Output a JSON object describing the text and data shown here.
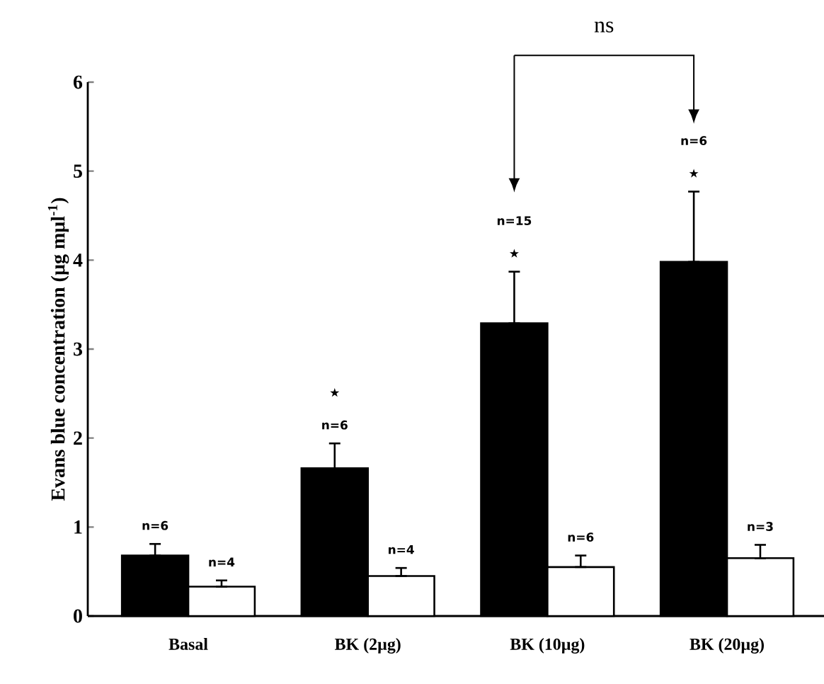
{
  "chart_data": {
    "type": "bar",
    "ylabel": "Evans blue concentration (µg mµl$^{-1}$)",
    "categories": [
      "Basal",
      "BK (2µg)",
      "BK (10µg)",
      "BK (20µg)"
    ],
    "series": [
      {
        "color": "#000000",
        "values": [
          0.68,
          1.66,
          3.29,
          3.98
        ],
        "errors": [
          [
            0.68,
            0.81
          ],
          [
            1.66,
            1.94
          ],
          [
            3.29,
            3.87
          ],
          [
            3.98,
            4.77
          ]
        ]
      },
      {
        "color": "#ffffff",
        "values": [
          0.33,
          0.45,
          0.55,
          0.65
        ],
        "errors": [
          [
            0.33,
            0.4
          ],
          [
            0.45,
            0.54
          ],
          [
            0.55,
            0.68
          ],
          [
            0.65,
            0.8
          ]
        ]
      }
    ],
    "ylim": [
      0,
      6
    ],
    "yticks": [
      0,
      1,
      2,
      3,
      4,
      5,
      6
    ],
    "annotations": [
      "n=6",
      "n=4",
      "★",
      "n=6",
      "n=4",
      "n=15",
      "★",
      "n=6",
      "n=6",
      "★",
      "n=3",
      "ns"
    ]
  }
}
